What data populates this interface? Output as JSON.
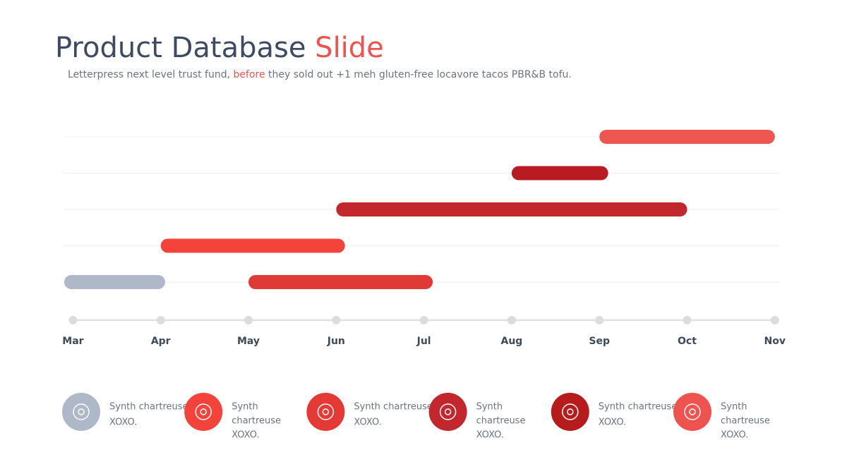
{
  "chart_data": {
    "type": "gantt",
    "title": {
      "main": "Product Database",
      "accent": "Slide"
    },
    "subtitle": {
      "before": "Letterpress next level trust fund,",
      "accent": "before",
      "after": "they sold out +1 meh gluten-free locavore tacos PBR&B tofu."
    },
    "xlim": [
      -0.1,
      8.05
    ],
    "xticks": [
      {
        "value": 0,
        "label": "Mar"
      },
      {
        "value": 1,
        "label": "Apr"
      },
      {
        "value": 2,
        "label": "May"
      },
      {
        "value": 3,
        "label": "Jun"
      },
      {
        "value": 4,
        "label": "Jul"
      },
      {
        "value": 5,
        "label": "Aug"
      },
      {
        "value": 6,
        "label": "Sep"
      },
      {
        "value": 7,
        "label": "Oct"
      },
      {
        "value": 8,
        "label": "Nov"
      }
    ],
    "grid": true,
    "rows": [
      [
        {
          "color": "#ee5652",
          "values": [
            6.0,
            8.0
          ]
        }
      ],
      [
        {
          "color": "#b81c22",
          "values": [
            5.0,
            6.1
          ]
        }
      ],
      [
        {
          "color": "#c1272d",
          "values": [
            3.0,
            7.0
          ]
        }
      ],
      [
        {
          "color": "#f4433a",
          "values": [
            1.0,
            3.1
          ]
        }
      ],
      [
        {
          "color": "#aeb8c8",
          "values": [
            -0.1,
            1.05
          ]
        },
        {
          "color": "#e03a37",
          "values": [
            2.0,
            4.1
          ]
        }
      ]
    ],
    "features": [
      {
        "color": "#aeb8c8",
        "lines": [
          "Synth chartreuse",
          "XOXO."
        ]
      },
      {
        "color": "#f4433a",
        "lines": [
          "Synth",
          "chartreuse",
          "XOXO."
        ]
      },
      {
        "color": "#e53935",
        "lines": [
          "Synth chartreuse",
          "XOXO."
        ]
      },
      {
        "color": "#c1272d",
        "lines": [
          "Synth",
          "chartreuse",
          "XOXO."
        ]
      },
      {
        "color": "#b71c1c",
        "lines": [
          "Synth chartreuse",
          "XOXO."
        ]
      },
      {
        "color": "#ef5350",
        "lines": [
          "Synth",
          "chartreuse",
          "XOXO."
        ]
      }
    ]
  }
}
